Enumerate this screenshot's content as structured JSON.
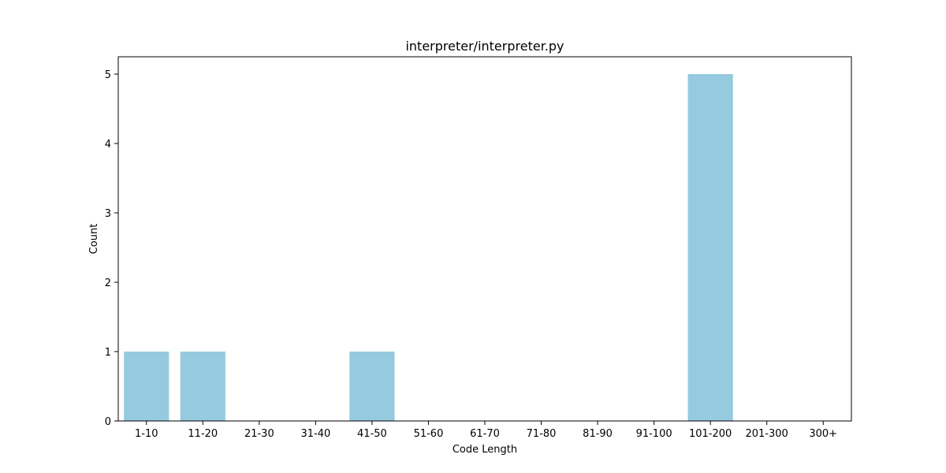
{
  "chart_data": {
    "type": "bar",
    "title": "interpreter/interpreter.py",
    "xlabel": "Code Length",
    "ylabel": "Count",
    "categories": [
      "1-10",
      "11-20",
      "21-30",
      "31-40",
      "41-50",
      "51-60",
      "61-70",
      "71-80",
      "81-90",
      "91-100",
      "101-200",
      "201-300",
      "300+"
    ],
    "values": [
      1,
      1,
      0,
      0,
      1,
      0,
      0,
      0,
      0,
      0,
      5,
      0,
      0
    ],
    "ylim": [
      0,
      5.25
    ],
    "yticks": [
      0,
      1,
      2,
      3,
      4,
      5
    ],
    "bar_color": "#96cade",
    "grid": false,
    "legend": false
  }
}
